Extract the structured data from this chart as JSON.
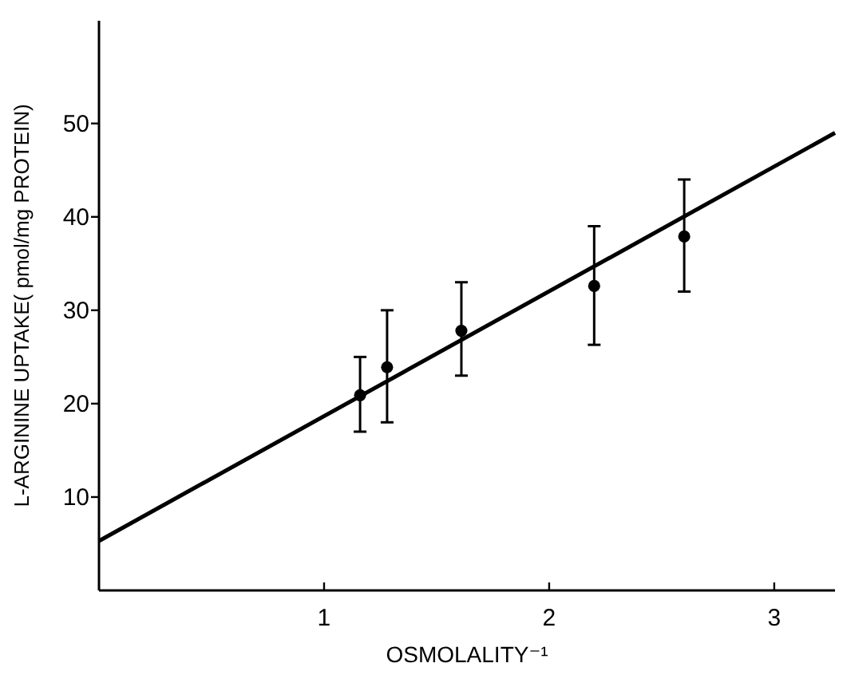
{
  "chart_data": {
    "type": "scatter",
    "xlabel": "OSMOLALITY⁻¹",
    "ylabel": "L-ARGININE UPTAKE( pmol/mg PROTEIN)",
    "xlim": [
      0,
      3.27
    ],
    "ylim": [
      0,
      61
    ],
    "xticks": [
      1,
      2,
      3
    ],
    "yticks": [
      10,
      20,
      30,
      40,
      50
    ],
    "grid": false,
    "marker": "circle",
    "series": [
      {
        "color": "#000000",
        "x": [
          1.16,
          1.28,
          1.61,
          2.2,
          2.6
        ],
        "values": [
          20.9,
          23.9,
          27.8,
          32.6,
          37.9
        ],
        "errors": [
          [
            17,
            25
          ],
          [
            18,
            30
          ],
          [
            23,
            33
          ],
          [
            26.3,
            39
          ],
          [
            32,
            44
          ]
        ]
      },
      {
        "type": "line",
        "color": "#000000",
        "x": [
          0,
          3.27
        ],
        "values": [
          5.3,
          49
        ],
        "line_style": "solid",
        "marker": "none"
      }
    ]
  }
}
